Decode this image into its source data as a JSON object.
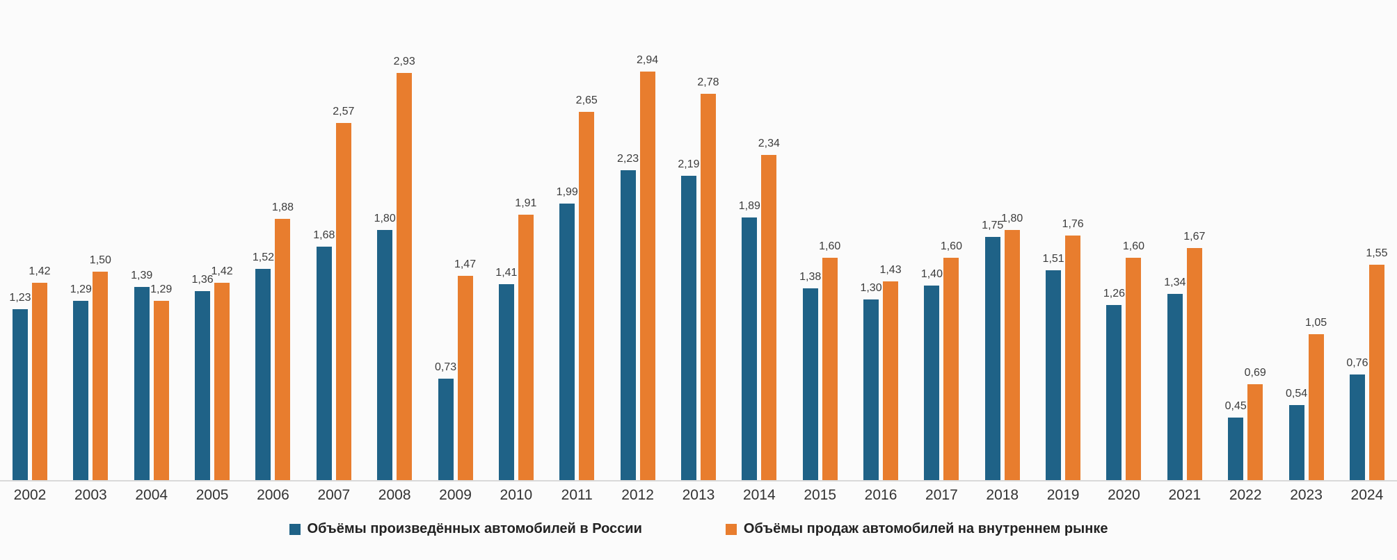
{
  "chart_data": {
    "type": "bar",
    "title": "",
    "xlabel": "",
    "ylabel": "",
    "categories": [
      "2002",
      "2003",
      "2004",
      "2005",
      "2006",
      "2007",
      "2008",
      "2009",
      "2010",
      "2011",
      "2012",
      "2013",
      "2014",
      "2015",
      "2016",
      "2017",
      "2018",
      "2019",
      "2020",
      "2021",
      "2022",
      "2023",
      "2024"
    ],
    "series": [
      {
        "name": "Объёмы произведённых автомобилей в России",
        "color": "#1F6287",
        "values": [
          1.23,
          1.29,
          1.39,
          1.36,
          1.52,
          1.68,
          1.8,
          0.73,
          1.41,
          1.99,
          2.23,
          2.19,
          1.89,
          1.38,
          1.3,
          1.4,
          1.75,
          1.51,
          1.26,
          1.34,
          0.45,
          0.54,
          0.76
        ]
      },
      {
        "name": "Объёмы продаж автомобилей на внутреннем рынке",
        "color": "#E87D2E",
        "values": [
          1.42,
          1.5,
          1.29,
          1.42,
          1.88,
          2.57,
          2.93,
          1.47,
          1.91,
          2.65,
          2.94,
          2.78,
          2.34,
          1.6,
          1.43,
          1.6,
          1.8,
          1.76,
          1.6,
          1.67,
          0.69,
          1.05,
          1.55
        ]
      }
    ],
    "ylim": [
      0,
      3.0
    ],
    "grid": false,
    "data_labels": true,
    "value_label_decimal_separator": ",",
    "legend_position": "bottom"
  },
  "colors": {
    "background": "#FBFBFB",
    "axis_line": "#D9D9D9",
    "value_label_text": "#3B3B3B",
    "axis_label_text": "#333333",
    "legend_text": "#222222"
  }
}
